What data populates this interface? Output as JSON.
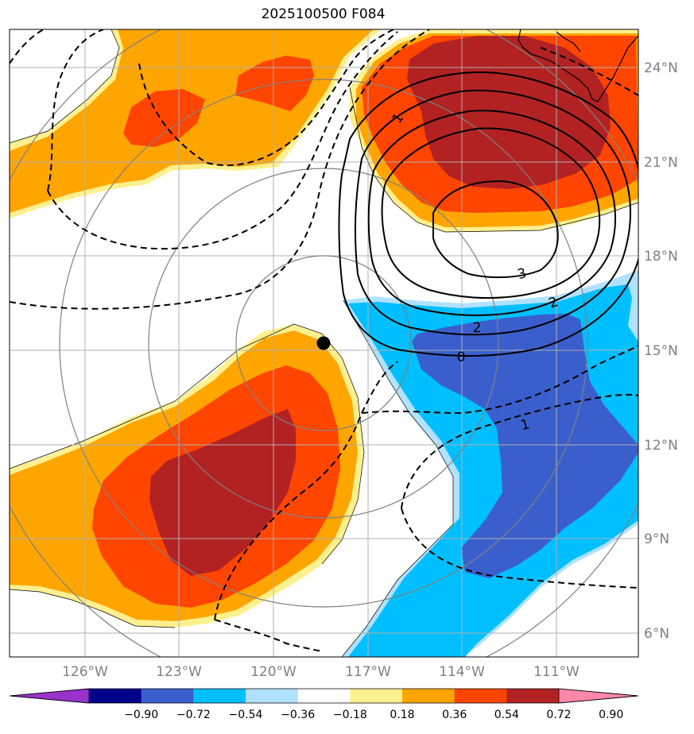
{
  "title": "2025100500 F084",
  "lon_labels": [
    "126°W",
    "123°W",
    "120°W",
    "117°W",
    "114°W",
    "111°W"
  ],
  "lat_labels": [
    "24°N",
    "21°N",
    "18°N",
    "15°N",
    "12°N",
    "9°N",
    "6°N"
  ],
  "colorbar": {
    "colors": [
      "#9932cc",
      "#00008b",
      "#3a5fcd",
      "#00bfff",
      "#b0e2ff",
      "#ffffff",
      "#fff08f",
      "#ffa500",
      "#ff4500",
      "#b22222",
      "#ff88aa"
    ],
    "labels": [
      "−0.90",
      "−0.72",
      "−0.54",
      "−0.36",
      "−0.18",
      "0.18",
      "0.36",
      "0.54",
      "0.72",
      "0.90"
    ]
  },
  "contour_labels": [
    "1",
    "3",
    "2",
    "2",
    "0",
    "1"
  ],
  "storm_center": "storm-center-marker"
}
